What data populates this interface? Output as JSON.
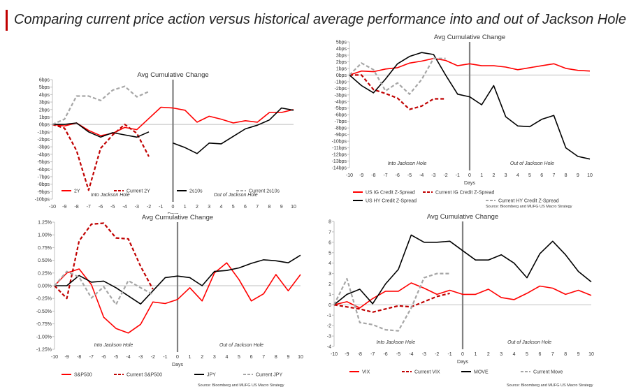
{
  "header": {
    "title": "Comparing current price action versus historical average performance into and out of Jackson Hole"
  },
  "colors": {
    "accent": "#c00000",
    "red": "#ff0000",
    "darkred": "#c00000",
    "black": "#000000",
    "gray": "#a6a6a6"
  },
  "chart_data": [
    {
      "type": "line",
      "title": "Avg Cumulative Change",
      "xlabel": "Days",
      "x": [
        -10,
        -9,
        -8,
        -7,
        -6,
        -5,
        -4,
        -3,
        -2,
        -1,
        0,
        1,
        2,
        3,
        4,
        5,
        6,
        7,
        8,
        9,
        10
      ],
      "xlim": [
        -10,
        10
      ],
      "ylim": [
        -10,
        6
      ],
      "yticks": [
        6,
        5,
        4,
        3,
        2,
        1,
        0,
        -1,
        -2,
        -3,
        -4,
        -5,
        -6,
        -7,
        -8,
        -9,
        -10
      ],
      "ytick_labels": [
        "6bps",
        "5bps",
        "4bps",
        "3bps",
        "2bps",
        "1bps",
        "0bps",
        "-1bps",
        "-2bps",
        "-3bps",
        "-4bps",
        "-5bps",
        "-6bps",
        "-7bps",
        "-8bps",
        "-9bps",
        "-10bps"
      ],
      "annotations": [
        "Into Jackson Hole",
        "Out of Jackson Hole"
      ],
      "source": "",
      "series": [
        {
          "name": "2Y",
          "style": "solid",
          "color": "#ff0000",
          "values": [
            0,
            -0.2,
            0.2,
            -0.8,
            -1.5,
            -1.2,
            -0.4,
            -0.7,
            0.8,
            2.3,
            2.2,
            1.9,
            0.3,
            1.1,
            0.7,
            0.2,
            0.5,
            0.3,
            1.6,
            1.6,
            2.0
          ]
        },
        {
          "name": "Current 2Y",
          "style": "dashed",
          "color": "#c00000",
          "values": [
            0,
            -0.5,
            -3.5,
            -8.8,
            -3.2,
            -1.4,
            0,
            -1.2,
            -4.3,
            null,
            null,
            null,
            null,
            null,
            null,
            null,
            null,
            null,
            null,
            null,
            null
          ]
        },
        {
          "name": "2s10s",
          "style": "solid",
          "color": "#000000",
          "values": [
            0,
            0,
            0.2,
            -1,
            -1.7,
            -1.1,
            -1.4,
            -1.7,
            -1,
            null,
            -2.5,
            -3.1,
            -3.9,
            -2.5,
            -2.6,
            -1.6,
            -0.6,
            -0.1,
            0.6,
            2.2,
            1.9
          ]
        },
        {
          "name": "Current 2s10s",
          "style": "dashed",
          "color": "#a6a6a6",
          "values": [
            0,
            0.7,
            3.8,
            3.8,
            3.2,
            4.6,
            5.1,
            3.7,
            4.4,
            null,
            null,
            null,
            null,
            null,
            null,
            null,
            null,
            null,
            null,
            null,
            null
          ]
        }
      ]
    },
    {
      "type": "line",
      "title": "Avg Cumulative Change",
      "xlabel": "Days",
      "x": [
        -10,
        -9,
        -8,
        -7,
        -6,
        -5,
        -4,
        -3,
        -2,
        -1,
        0,
        1,
        2,
        3,
        4,
        5,
        6,
        7,
        8,
        9,
        10
      ],
      "xlim": [
        -10,
        10
      ],
      "ylim": [
        -14,
        5
      ],
      "yticks": [
        5,
        4,
        3,
        2,
        1,
        0,
        -1,
        -2,
        -3,
        -4,
        -5,
        -6,
        -7,
        -8,
        -9,
        -10,
        -11,
        -12,
        -13,
        -14
      ],
      "ytick_labels": [
        "5bps",
        "4bps",
        "3bps",
        "2bps",
        "1bps",
        "0bps",
        "-1bps",
        "-2bps",
        "-3bps",
        "-4bps",
        "-5bps",
        "-6bps",
        "-7bps",
        "-8bps",
        "-9bps",
        "-10bps",
        "-11bps",
        "-12bps",
        "-13bps",
        "-14bps"
      ],
      "annotations": [
        "Into Jackson Hole",
        "Out of Jackson Hole"
      ],
      "source": "Source: Bloomberg and MUFG US Macro Strategy",
      "series": [
        {
          "name": "US IG Credit Z-Spread",
          "style": "solid",
          "color": "#ff0000",
          "values": [
            0,
            0.6,
            0.5,
            0.9,
            1.1,
            1.8,
            2.1,
            2.5,
            2.2,
            1.4,
            1.7,
            1.4,
            1.4,
            1.2,
            0.8,
            1.1,
            1.4,
            1.7,
            1.0,
            0.7,
            0.6
          ]
        },
        {
          "name": "Current IG Credit Z-Spread",
          "style": "dashed",
          "color": "#c00000",
          "values": [
            0,
            0,
            -2.2,
            -2.8,
            -3.5,
            -5.2,
            -4.7,
            -3.6,
            -3.6,
            null,
            null,
            null,
            null,
            null,
            null,
            null,
            null,
            null,
            null,
            null,
            null
          ]
        },
        {
          "name": "US HY Credit Z-Spread",
          "style": "solid",
          "color": "#000000",
          "values": [
            0,
            -1.6,
            -2.7,
            -0.6,
            1.7,
            2.8,
            3.4,
            3.1,
            0,
            -2.9,
            -3.3,
            -4.5,
            -1.6,
            -6.3,
            -7.7,
            -7.8,
            -6.7,
            -6.1,
            -11,
            -12.3,
            -12.7
          ]
        },
        {
          "name": "Current HY Credit Z-Spread",
          "style": "dashed",
          "color": "#a6a6a6",
          "values": [
            0,
            1.8,
            0.8,
            -2.4,
            -1.2,
            -2.9,
            -0.7,
            2.5,
            2.5,
            null,
            null,
            null,
            null,
            null,
            null,
            null,
            null,
            null,
            null,
            null,
            null
          ]
        }
      ]
    },
    {
      "type": "line",
      "title": "Avg Cumulative Change",
      "xlabel": "Days",
      "x": [
        -10,
        -9,
        -8,
        -7,
        -6,
        -5,
        -4,
        -3,
        -2,
        -1,
        0,
        1,
        2,
        3,
        4,
        5,
        6,
        7,
        8,
        9,
        10
      ],
      "xlim": [
        -10,
        10
      ],
      "ylim": [
        -1.25,
        1.25
      ],
      "yticks": [
        1.25,
        1.0,
        0.75,
        0.5,
        0.25,
        0,
        -0.25,
        -0.5,
        -0.75,
        -1.0,
        -1.25
      ],
      "ytick_labels": [
        "1.25%",
        "1.00%",
        "0.75%",
        "0.50%",
        "0.25%",
        "0.00%",
        "-0.25%",
        "-0.50%",
        "-0.75%",
        "-1.00%",
        "-1.25%"
      ],
      "annotations": [
        "Into Jackson Hole",
        "Out of Jackson Hole"
      ],
      "source": "Source: Bloomberg and MUFG US Macro Strategy",
      "series": [
        {
          "name": "S&P500",
          "style": "solid",
          "color": "#ff0000",
          "values": [
            0,
            0.25,
            0.33,
            0.02,
            -0.62,
            -0.84,
            -0.93,
            -0.76,
            -0.32,
            -0.35,
            -0.27,
            -0.04,
            -0.3,
            0.25,
            0.45,
            0.12,
            -0.3,
            -0.16,
            0.22,
            -0.1,
            0.22
          ]
        },
        {
          "name": "Current S&P500",
          "style": "dashed",
          "color": "#c00000",
          "values": [
            0,
            -0.25,
            0.88,
            1.21,
            1.23,
            0.94,
            0.92,
            0.38,
            -0.07,
            null,
            null,
            null,
            null,
            null,
            null,
            null,
            null,
            null,
            null,
            null,
            null
          ]
        },
        {
          "name": "JPY",
          "style": "solid",
          "color": "#000000",
          "values": [
            0,
            0,
            0.2,
            0.07,
            0.09,
            -0.04,
            -0.2,
            -0.36,
            -0.1,
            0.16,
            0.19,
            0.16,
            0,
            0.28,
            0.3,
            0.35,
            0.44,
            0.51,
            0.49,
            0.45,
            0.6
          ]
        },
        {
          "name": "Current JPY",
          "style": "dashed",
          "color": "#a6a6a6",
          "values": [
            0,
            0.28,
            0.17,
            -0.24,
            -0.02,
            -0.37,
            0.1,
            -0.04,
            -0.17,
            null,
            null,
            null,
            null,
            null,
            null,
            null,
            null,
            null,
            null,
            null,
            null
          ]
        }
      ]
    },
    {
      "type": "line",
      "title": "Avg Cumulative Change",
      "xlabel": "Days",
      "x": [
        -10,
        -9,
        -8,
        -7,
        -6,
        -5,
        -4,
        -3,
        -2,
        -1,
        0,
        1,
        2,
        3,
        4,
        5,
        6,
        7,
        8,
        9,
        10
      ],
      "xlim": [
        -10,
        10
      ],
      "ylim": [
        -4,
        8
      ],
      "yticks": [
        8,
        7,
        6,
        5,
        4,
        3,
        2,
        1,
        0,
        -1,
        -2,
        -3,
        -4
      ],
      "ytick_labels": [
        "8",
        "7",
        "6",
        "5",
        "4",
        "3",
        "2",
        "1",
        "0",
        "-1",
        "-2",
        "-3",
        "-4"
      ],
      "annotations": [
        "Into Jackson Hole",
        "Out of Jackson Hole"
      ],
      "source": "Source: Bloomberg and MUFG US Macro Strategy",
      "series": [
        {
          "name": "VIX",
          "style": "solid",
          "color": "#ff0000",
          "values": [
            0,
            0.3,
            -0.3,
            0.6,
            1.3,
            1.3,
            2.1,
            1.6,
            1.0,
            1.4,
            1.0,
            1.0,
            1.5,
            0.7,
            0.5,
            1.1,
            1.8,
            1.6,
            1.0,
            1.4,
            0.9
          ]
        },
        {
          "name": "Current VIX",
          "style": "dashed",
          "color": "#c00000",
          "values": [
            0,
            -0.2,
            -0.4,
            -0.7,
            -0.4,
            -0.1,
            -0.2,
            0.3,
            0.8,
            1.1,
            null,
            null,
            null,
            null,
            null,
            null,
            null,
            null,
            null,
            null,
            null
          ]
        },
        {
          "name": "MOVE",
          "style": "solid",
          "color": "#000000",
          "values": [
            0,
            1.0,
            1.5,
            0.1,
            2.0,
            3.4,
            6.7,
            6.0,
            6.0,
            6.1,
            5.2,
            4.3,
            4.3,
            4.8,
            4.0,
            2.6,
            4.9,
            6.1,
            4.8,
            3.2,
            2.2
          ]
        },
        {
          "name": "Current Move",
          "style": "dashed",
          "color": "#a6a6a6",
          "values": [
            0,
            2.5,
            -1.7,
            -1.9,
            -2.4,
            -2.5,
            -0.3,
            2.6,
            3.0,
            3.0,
            null,
            null,
            null,
            null,
            null,
            null,
            null,
            null,
            null,
            null,
            null
          ]
        }
      ]
    }
  ]
}
